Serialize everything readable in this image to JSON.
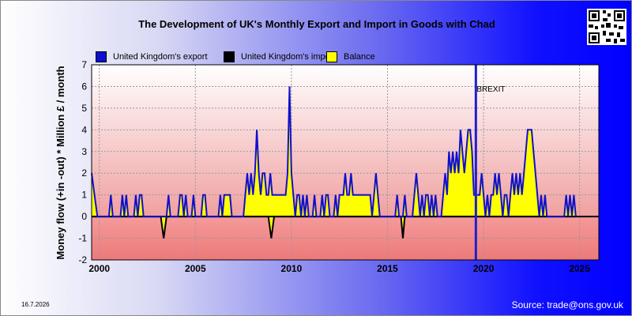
{
  "title": "The Development of UK's Monthly Export and Import in Goods with Chad",
  "date_stamp": "16.7.2026",
  "source": "Source: trade@ons.gov.uk",
  "qr_icon": "qr-code-icon",
  "colors": {
    "export": "#1010cc",
    "import": "#000000",
    "balance": "#ffff00",
    "brexit": "#2020cc"
  },
  "chart_data": {
    "type": "line",
    "title": "The Development of UK's Monthly Export and Import in Goods with Chad",
    "xlabel": "",
    "ylabel": "Money flow (+in -out) * Million £ / month",
    "xlim": [
      1999.6,
      2026.0
    ],
    "ylim": [
      -2,
      7
    ],
    "x_ticks": [
      "2000",
      "2005",
      "2010",
      "2015",
      "2020",
      "2025"
    ],
    "y_ticks": [
      "-2",
      "-1",
      "0",
      "1",
      "2",
      "3",
      "4",
      "5",
      "6",
      "7"
    ],
    "grid": true,
    "legend_position": "top",
    "annotations": [
      {
        "text": "BREXIT",
        "x": 2019.6
      }
    ],
    "series": [
      {
        "name": "United Kingdom's export",
        "points": [
          [
            1999.6,
            2
          ],
          [
            1999.75,
            1
          ],
          [
            1999.9,
            0
          ],
          [
            2000.5,
            0
          ],
          [
            2000.6,
            1
          ],
          [
            2000.7,
            0
          ],
          [
            2001.1,
            0
          ],
          [
            2001.2,
            1
          ],
          [
            2001.3,
            0
          ],
          [
            2001.4,
            1
          ],
          [
            2001.5,
            0
          ],
          [
            2001.8,
            0
          ],
          [
            2001.9,
            1
          ],
          [
            2002.0,
            0
          ],
          [
            2002.1,
            1
          ],
          [
            2002.2,
            1
          ],
          [
            2002.3,
            0
          ],
          [
            2003.5,
            0
          ],
          [
            2003.6,
            1
          ],
          [
            2003.7,
            0
          ],
          [
            2004.1,
            0
          ],
          [
            2004.2,
            1
          ],
          [
            2004.3,
            1
          ],
          [
            2004.4,
            0
          ],
          [
            2004.5,
            1
          ],
          [
            2004.6,
            0
          ],
          [
            2004.8,
            0
          ],
          [
            2004.9,
            1
          ],
          [
            2005.0,
            0
          ],
          [
            2005.3,
            0
          ],
          [
            2005.4,
            1
          ],
          [
            2005.5,
            1
          ],
          [
            2005.6,
            0
          ],
          [
            2006.2,
            0
          ],
          [
            2006.3,
            1
          ],
          [
            2006.4,
            0
          ],
          [
            2006.5,
            1
          ],
          [
            2006.6,
            1
          ],
          [
            2006.7,
            1
          ],
          [
            2006.8,
            1
          ],
          [
            2006.9,
            0
          ],
          [
            2007.5,
            0
          ],
          [
            2007.6,
            1
          ],
          [
            2007.7,
            2
          ],
          [
            2007.8,
            1
          ],
          [
            2007.9,
            2
          ],
          [
            2008.0,
            1
          ],
          [
            2008.1,
            2
          ],
          [
            2008.2,
            4
          ],
          [
            2008.3,
            2
          ],
          [
            2008.4,
            1
          ],
          [
            2008.5,
            2
          ],
          [
            2008.6,
            2
          ],
          [
            2008.7,
            1
          ],
          [
            2008.8,
            1
          ],
          [
            2008.9,
            2
          ],
          [
            2009.0,
            1
          ],
          [
            2009.2,
            1
          ],
          [
            2009.3,
            1
          ],
          [
            2009.4,
            1
          ],
          [
            2009.5,
            1
          ],
          [
            2009.6,
            1
          ],
          [
            2009.7,
            1
          ],
          [
            2009.8,
            2
          ],
          [
            2009.9,
            6
          ],
          [
            2010.0,
            2
          ],
          [
            2010.1,
            1
          ],
          [
            2010.2,
            0
          ],
          [
            2010.3,
            1
          ],
          [
            2010.4,
            1
          ],
          [
            2010.5,
            0
          ],
          [
            2010.6,
            1
          ],
          [
            2010.7,
            0
          ],
          [
            2010.8,
            1
          ],
          [
            2010.9,
            0
          ],
          [
            2011.1,
            0
          ],
          [
            2011.2,
            1
          ],
          [
            2011.3,
            0
          ],
          [
            2011.5,
            0
          ],
          [
            2011.6,
            1
          ],
          [
            2011.7,
            0
          ],
          [
            2011.8,
            1
          ],
          [
            2011.9,
            1
          ],
          [
            2012.0,
            0
          ],
          [
            2012.2,
            0
          ],
          [
            2012.3,
            1
          ],
          [
            2012.4,
            0
          ],
          [
            2012.5,
            1
          ],
          [
            2012.6,
            1
          ],
          [
            2012.7,
            1
          ],
          [
            2012.8,
            2
          ],
          [
            2012.9,
            1
          ],
          [
            2013.0,
            1
          ],
          [
            2013.1,
            2
          ],
          [
            2013.2,
            1
          ],
          [
            2013.3,
            1
          ],
          [
            2013.4,
            1
          ],
          [
            2013.5,
            1
          ],
          [
            2013.6,
            1
          ],
          [
            2013.7,
            1
          ],
          [
            2013.8,
            1
          ],
          [
            2013.9,
            1
          ],
          [
            2014.0,
            1
          ],
          [
            2014.1,
            1
          ],
          [
            2014.2,
            0
          ],
          [
            2014.3,
            1
          ],
          [
            2014.4,
            2
          ],
          [
            2014.5,
            1
          ],
          [
            2014.6,
            0
          ],
          [
            2015.4,
            0
          ],
          [
            2015.5,
            1
          ],
          [
            2015.6,
            0
          ],
          [
            2015.7,
            0
          ],
          [
            2015.8,
            0
          ],
          [
            2015.9,
            1
          ],
          [
            2016.0,
            0
          ],
          [
            2016.3,
            0
          ],
          [
            2016.4,
            1
          ],
          [
            2016.5,
            2
          ],
          [
            2016.6,
            1
          ],
          [
            2016.7,
            0
          ],
          [
            2016.8,
            1
          ],
          [
            2016.9,
            0
          ],
          [
            2017.0,
            1
          ],
          [
            2017.1,
            1
          ],
          [
            2017.2,
            0
          ],
          [
            2017.3,
            1
          ],
          [
            2017.4,
            0
          ],
          [
            2017.5,
            1
          ],
          [
            2017.6,
            0
          ],
          [
            2017.8,
            0
          ],
          [
            2017.9,
            1
          ],
          [
            2018.0,
            2
          ],
          [
            2018.1,
            1
          ],
          [
            2018.2,
            3
          ],
          [
            2018.3,
            2
          ],
          [
            2018.4,
            3
          ],
          [
            2018.5,
            2
          ],
          [
            2018.6,
            3
          ],
          [
            2018.7,
            2
          ],
          [
            2018.8,
            4
          ],
          [
            2018.9,
            3
          ],
          [
            2019.0,
            2
          ],
          [
            2019.1,
            3
          ],
          [
            2019.2,
            4
          ],
          [
            2019.3,
            4
          ],
          [
            2019.4,
            3
          ],
          [
            2019.5,
            1
          ],
          [
            2019.6,
            1
          ],
          [
            2019.7,
            1
          ],
          [
            2019.8,
            1
          ],
          [
            2019.9,
            2
          ],
          [
            2020.0,
            1
          ],
          [
            2020.1,
            0
          ],
          [
            2020.2,
            1
          ],
          [
            2020.3,
            0
          ],
          [
            2020.4,
            1
          ],
          [
            2020.5,
            1
          ],
          [
            2020.6,
            2
          ],
          [
            2020.7,
            1
          ],
          [
            2020.8,
            2
          ],
          [
            2020.9,
            1
          ],
          [
            2021.0,
            0
          ],
          [
            2021.1,
            1
          ],
          [
            2021.2,
            1
          ],
          [
            2021.3,
            0
          ],
          [
            2021.4,
            1
          ],
          [
            2021.5,
            2
          ],
          [
            2021.6,
            1
          ],
          [
            2021.7,
            2
          ],
          [
            2021.8,
            1
          ],
          [
            2021.9,
            2
          ],
          [
            2022.0,
            1
          ],
          [
            2022.1,
            2
          ],
          [
            2022.2,
            3
          ],
          [
            2022.3,
            4
          ],
          [
            2022.4,
            4
          ],
          [
            2022.5,
            4
          ],
          [
            2022.6,
            3
          ],
          [
            2022.7,
            2
          ],
          [
            2022.8,
            1
          ],
          [
            2022.9,
            0
          ],
          [
            2023.0,
            1
          ],
          [
            2023.1,
            0
          ],
          [
            2023.2,
            1
          ],
          [
            2023.3,
            0
          ],
          [
            2024.2,
            0
          ],
          [
            2024.3,
            1
          ],
          [
            2024.4,
            0
          ],
          [
            2024.5,
            1
          ],
          [
            2024.6,
            0
          ],
          [
            2024.7,
            1
          ],
          [
            2024.8,
            0
          ]
        ]
      },
      {
        "name": "United Kingdom's import",
        "points": [
          [
            1999.6,
            0
          ],
          [
            2003.2,
            0
          ],
          [
            2003.35,
            -1
          ],
          [
            2003.5,
            0
          ],
          [
            2008.8,
            0
          ],
          [
            2008.95,
            -1
          ],
          [
            2009.1,
            0
          ],
          [
            2015.7,
            0
          ],
          [
            2015.8,
            -1
          ],
          [
            2015.9,
            0
          ],
          [
            2024.8,
            0
          ]
        ]
      },
      {
        "name": "Balance"
      }
    ]
  }
}
